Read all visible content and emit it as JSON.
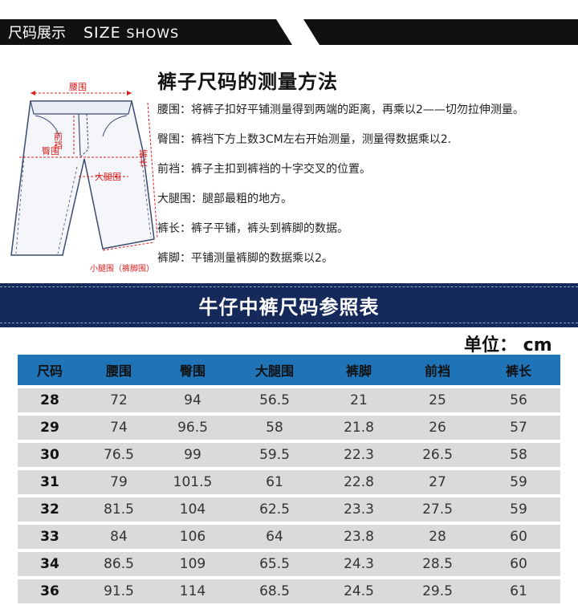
{
  "header": {
    "title_cn": "尺码展示",
    "title_en_big": "SIZE",
    "title_en_small": "SHOWS"
  },
  "diagram": {
    "waist": "腰围",
    "front_rise": "前裆",
    "hip": "臀围",
    "length": "裤长",
    "thigh": "大腿围",
    "hem": "小腿围（裤脚围）"
  },
  "method": {
    "title": "裤子尺码的测量方法",
    "items": [
      "腰围：将裤子扣好平铺测量得到两端的距离，再乘以2——切勿拉伸测量。",
      "臀围：裤裆下方上数3CM左右开始测量，测量得数据乘以2.",
      "前裆：裤子主扣到裤裆的十字交叉的位置。",
      "大腿围：腿部最粗的地方。",
      "裤长：裤子平铺，裤头到裤脚的数据。",
      "裤脚：平铺测量裤脚的数据乘以2。"
    ]
  },
  "banner": {
    "title": "牛仔中裤尺码参照表"
  },
  "unit": "单位： cm",
  "colors": {
    "navy": "#15295a",
    "table_header": "#1f73b7",
    "row_bg": "#dadada",
    "measure_line": "#d92020"
  },
  "table": {
    "headers": [
      "尺码",
      "腰围",
      "臀围",
      "大腿围",
      "裤脚",
      "前裆",
      "裤长"
    ],
    "rows": [
      [
        "28",
        "72",
        "94",
        "56.5",
        "21",
        "25",
        "56"
      ],
      [
        "29",
        "74",
        "96.5",
        "58",
        "21.8",
        "26",
        "57"
      ],
      [
        "30",
        "76.5",
        "99",
        "59.5",
        "22.3",
        "26.5",
        "58"
      ],
      [
        "31",
        "79",
        "101.5",
        "61",
        "22.8",
        "27",
        "59"
      ],
      [
        "32",
        "81.5",
        "104",
        "62.5",
        "23.3",
        "27.5",
        "59"
      ],
      [
        "33",
        "84",
        "106",
        "64",
        "23.8",
        "28",
        "60"
      ],
      [
        "34",
        "86.5",
        "109",
        "65.5",
        "24.3",
        "28.5",
        "60"
      ],
      [
        "36",
        "91.5",
        "114",
        "68.5",
        "24.5",
        "29.5",
        "61"
      ]
    ]
  }
}
